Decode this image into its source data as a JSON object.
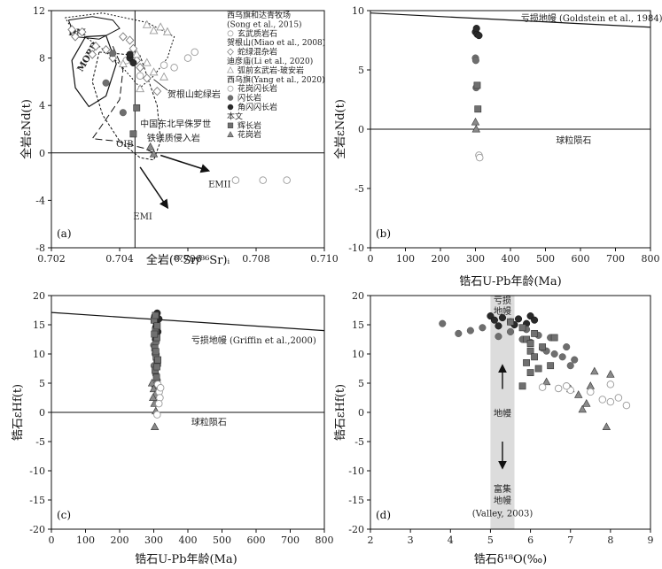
{
  "colors": {
    "dark": "#2a2a2a",
    "mid": "#6e6e6e",
    "open": "#9a9a9a",
    "band": "#dcdcdc"
  },
  "chart_data": [
    {
      "panel": "(a)",
      "type": "scatter",
      "xlabel": "全岩(⁸⁷Sr/⁸⁶Sr)ᵢ",
      "ylabel": "全岩εNd(t)",
      "xlim": [
        0.702,
        0.71
      ],
      "ylim": [
        -8,
        12
      ],
      "xticks": [
        "0.702",
        "0.704",
        "0.706",
        "0.708",
        "0.710"
      ],
      "yticks": [
        "-8",
        "-4",
        "0",
        "4",
        "8",
        "12"
      ],
      "fields": {
        "dm": "DM",
        "morb": "MORB",
        "oib": "OIB",
        "emi": "EMI",
        "emii": "EMII"
      },
      "annotations": {
        "ophiolite": "贺根山蛇绿岩",
        "ne_china_1": "中国东北早侏罗世",
        "ne_china_2": "铁镁质侵入岩"
      },
      "legend": {
        "g1_title_1": "西乌旗和达青牧场",
        "g1_title_2": "(Song et al., 2015)",
        "g1_item": "玄武质岩石",
        "g2_title": "贺根山(Miao et al., 2008)",
        "g2_item": "蛇绿混杂岩",
        "g3_title": "迪彦庙(Li et al., 2020)",
        "g3_item": "弧前玄武岩-玻安岩",
        "g4_title": "西乌旗(Yang et al., 2020)",
        "g4_items": [
          "花岗闪长岩",
          "闪长岩",
          "角闪闪长岩"
        ],
        "g5_title": "本文",
        "g5_items": [
          "辉长岩",
          "花岗岩"
        ]
      },
      "series": [
        {
          "name": "玄武质岩石",
          "marker": "open-circle",
          "points": [
            [
              0.7042,
              7.8
            ],
            [
              0.7046,
              6.5
            ],
            [
              0.7053,
              7.4
            ],
            [
              0.7056,
              7.2
            ],
            [
              0.7062,
              8.5
            ],
            [
              0.706,
              8.0
            ],
            [
              0.7074,
              -2.3
            ],
            [
              0.7082,
              -2.3
            ],
            [
              0.7089,
              -2.3
            ]
          ]
        },
        {
          "name": "蛇绿混杂岩",
          "marker": "open-diamond",
          "points": [
            [
              0.7026,
              10.4
            ],
            [
              0.7027,
              9.8
            ],
            [
              0.7029,
              10.2
            ],
            [
              0.7033,
              9.0
            ],
            [
              0.7036,
              8.7
            ],
            [
              0.7032,
              8.3
            ],
            [
              0.7038,
              8.0
            ],
            [
              0.7041,
              9.8
            ],
            [
              0.7043,
              9.5
            ],
            [
              0.7044,
              8.8
            ],
            [
              0.7045,
              7.8
            ],
            [
              0.7046,
              7.2
            ],
            [
              0.7048,
              6.3
            ],
            [
              0.7051,
              5.2
            ]
          ]
        },
        {
          "name": "弧前玄武岩-玻安岩",
          "marker": "open-triangle",
          "points": [
            [
              0.7048,
              10.8
            ],
            [
              0.705,
              10.3
            ],
            [
              0.7052,
              10.6
            ],
            [
              0.7054,
              10.2
            ],
            [
              0.7045,
              8.3
            ],
            [
              0.7048,
              7.6
            ],
            [
              0.705,
              6.8
            ],
            [
              0.7053,
              6.4
            ],
            [
              0.7046,
              5.4
            ],
            [
              0.7041,
              7.5
            ]
          ]
        },
        {
          "name": "花岗闪长岩",
          "marker": "grey-circle",
          "points": [
            [
              0.7038,
              8.4
            ],
            [
              0.7036,
              5.9
            ],
            [
              0.7041,
              3.4
            ]
          ]
        },
        {
          "name": "角闪闪长岩",
          "marker": "black-circle",
          "points": [
            [
              0.7043,
              8.0
            ],
            [
              0.7044,
              7.6
            ],
            [
              0.7043,
              8.3
            ]
          ]
        },
        {
          "name": "辉长岩",
          "marker": "square",
          "points": [
            [
              0.7045,
              3.8
            ],
            [
              0.7044,
              1.6
            ]
          ]
        },
        {
          "name": "花岗岩",
          "marker": "triangle",
          "points": [
            [
              0.7049,
              0.5
            ],
            [
              0.705,
              -0.1
            ]
          ]
        }
      ]
    },
    {
      "panel": "(b)",
      "type": "scatter",
      "xlabel": "锆石U-Pb年龄(Ma)",
      "ylabel": "全岩εNd(t)",
      "xlim": [
        0,
        800
      ],
      "ylim": [
        -10,
        10
      ],
      "xticks": [
        "0",
        "100",
        "200",
        "300",
        "400",
        "500",
        "600",
        "700",
        "800"
      ],
      "yticks": [
        "-10",
        "-5",
        "0",
        "5",
        "10"
      ],
      "depleted_label": "亏损地幔 (Goldstein et al., 1984)",
      "chondrite_label": "球粒陨石",
      "depleted_line": [
        [
          0,
          9.8
        ],
        [
          800,
          8.6
        ]
      ],
      "series": [
        {
          "marker": "black-circle",
          "points": [
            [
              300,
              8.2
            ],
            [
              305,
              8.0
            ],
            [
              310,
              7.9
            ],
            [
              303,
              8.5
            ]
          ]
        },
        {
          "marker": "grey-circle",
          "points": [
            [
              300,
              6.0
            ],
            [
              302,
              3.5
            ],
            [
              301,
              5.8
            ]
          ]
        },
        {
          "marker": "square",
          "points": [
            [
              305,
              3.7
            ],
            [
              307,
              1.7
            ]
          ]
        },
        {
          "marker": "triangle",
          "points": [
            [
              300,
              0.6
            ],
            [
              302,
              0.0
            ]
          ]
        },
        {
          "marker": "open-circle",
          "points": [
            [
              310,
              -2.2
            ],
            [
              312,
              -2.4
            ]
          ]
        }
      ]
    },
    {
      "panel": "(c)",
      "type": "scatter",
      "xlabel": "锆石U-Pb年龄(Ma)",
      "ylabel": "锆石εHf(t)",
      "xlim": [
        0,
        800
      ],
      "ylim": [
        -20,
        20
      ],
      "xticks": [
        "0",
        "100",
        "200",
        "300",
        "400",
        "500",
        "600",
        "700",
        "800"
      ],
      "yticks": [
        "-20",
        "-15",
        "-10",
        "-5",
        "0",
        "5",
        "10",
        "15",
        "20"
      ],
      "depleted_label": "亏损地幔 (Griffin et al.,2000)",
      "chondrite_label": "球粒陨石",
      "depleted_line": [
        [
          0,
          17.1
        ],
        [
          800,
          14.0
        ]
      ],
      "series": [
        {
          "marker": "black-circle",
          "points": [
            [
              303,
              16.5
            ],
            [
              308,
              15.2
            ],
            [
              312,
              13.8
            ],
            [
              305,
              12.5
            ],
            [
              310,
              17.0
            ],
            [
              315,
              16.0
            ],
            [
              306,
              14.6
            ]
          ]
        },
        {
          "marker": "grey-circle",
          "points": [
            [
              300,
              11.5
            ],
            [
              304,
              10.0
            ],
            [
              308,
              9.0
            ],
            [
              301,
              8.0
            ],
            [
              306,
              6.5
            ],
            [
              310,
              5.5
            ],
            [
              303,
              4.5
            ],
            [
              307,
              12.0
            ]
          ]
        },
        {
          "marker": "square",
          "points": [
            [
              301,
              15.8
            ],
            [
              305,
              14.0
            ],
            [
              309,
              12.8
            ],
            [
              303,
              11.0
            ],
            [
              307,
              9.6
            ],
            [
              311,
              8.4
            ],
            [
              304,
              7.2
            ],
            [
              308,
              6.0
            ],
            [
              302,
              13.4
            ],
            [
              306,
              10.4
            ],
            [
              310,
              14.8
            ],
            [
              312,
              9.0
            ],
            [
              305,
              16.6
            ],
            [
              309,
              7.8
            ]
          ]
        },
        {
          "marker": "triangle",
          "points": [
            [
              295,
              5.0
            ],
            [
              300,
              4.0
            ],
            [
              304,
              3.0
            ],
            [
              302,
              1.5
            ],
            [
              306,
              0.2
            ],
            [
              303,
              -2.5
            ],
            [
              298,
              2.5
            ]
          ]
        },
        {
          "marker": "open-circle",
          "points": [
            [
              312,
              4.8
            ],
            [
              316,
              3.5
            ],
            [
              318,
              2.5
            ],
            [
              320,
              4.2
            ],
            [
              315,
              1.5
            ],
            [
              310,
              -0.4
            ]
          ]
        }
      ]
    },
    {
      "panel": "(d)",
      "type": "scatter",
      "xlabel": "锆石δ¹⁸O(‰)",
      "ylabel": "锆石εHf(t)",
      "xlim": [
        2,
        9
      ],
      "ylim": [
        -20,
        20
      ],
      "xticks": [
        "2",
        "3",
        "4",
        "5",
        "6",
        "7",
        "8",
        "9"
      ],
      "yticks": [
        "-20",
        "-15",
        "-10",
        "-5",
        "0",
        "5",
        "10",
        "15",
        "20"
      ],
      "mantle_band": [
        5.0,
        5.6
      ],
      "band_labels": {
        "depleted_1": "亏损",
        "depleted_2": "地幔",
        "mantle": "地幔",
        "enriched_1": "富集",
        "enriched_2": "地幔",
        "ref": "(Valley, 2003)"
      },
      "series": [
        {
          "marker": "black-circle",
          "points": [
            [
              5.0,
              16.5
            ],
            [
              5.1,
              15.8
            ],
            [
              5.3,
              16.2
            ],
            [
              5.5,
              15.5
            ],
            [
              5.7,
              16.0
            ],
            [
              5.9,
              15.2
            ],
            [
              6.0,
              16.5
            ],
            [
              5.2,
              14.8
            ],
            [
              5.6,
              15.0
            ],
            [
              6.1,
              15.8
            ]
          ]
        },
        {
          "marker": "grey-circle",
          "points": [
            [
              3.8,
              15.2
            ],
            [
              4.2,
              13.5
            ],
            [
              4.5,
              14.0
            ],
            [
              4.8,
              14.5
            ],
            [
              5.2,
              13.0
            ],
            [
              5.5,
              13.8
            ],
            [
              5.8,
              12.5
            ],
            [
              6.0,
              12.0
            ],
            [
              6.3,
              11.0
            ],
            [
              6.6,
              10.0
            ],
            [
              6.8,
              9.5
            ],
            [
              7.0,
              8.0
            ],
            [
              6.5,
              12.8
            ],
            [
              5.9,
              14.2
            ],
            [
              6.2,
              13.2
            ],
            [
              6.9,
              11.2
            ],
            [
              7.1,
              9.0
            ],
            [
              6.4,
              10.5
            ]
          ]
        },
        {
          "marker": "square",
          "points": [
            [
              5.5,
              15.5
            ],
            [
              5.8,
              14.5
            ],
            [
              5.9,
              12.5
            ],
            [
              6.0,
              11.8
            ],
            [
              6.0,
              10.5
            ],
            [
              6.1,
              9.5
            ],
            [
              5.9,
              8.5
            ],
            [
              6.2,
              7.5
            ],
            [
              6.0,
              6.8
            ],
            [
              5.8,
              4.5
            ],
            [
              6.1,
              13.5
            ],
            [
              6.3,
              11.2
            ],
            [
              6.6,
              12.8
            ],
            [
              6.5,
              8.0
            ]
          ]
        },
        {
          "marker": "triangle",
          "points": [
            [
              6.4,
              5.2
            ],
            [
              7.0,
              4.0
            ],
            [
              7.2,
              3.0
            ],
            [
              7.4,
              1.5
            ],
            [
              7.3,
              0.5
            ],
            [
              7.6,
              7.0
            ],
            [
              8.0,
              6.5
            ],
            [
              7.9,
              -2.5
            ],
            [
              7.5,
              4.5
            ]
          ]
        },
        {
          "marker": "open-circle",
          "points": [
            [
              6.3,
              4.3
            ],
            [
              6.7,
              4.1
            ],
            [
              7.0,
              3.8
            ],
            [
              7.5,
              3.5
            ],
            [
              8.0,
              4.8
            ],
            [
              8.2,
              2.5
            ],
            [
              8.4,
              1.2
            ],
            [
              8.0,
              1.8
            ],
            [
              7.8,
              2.2
            ],
            [
              6.9,
              4.5
            ]
          ]
        }
      ]
    }
  ]
}
